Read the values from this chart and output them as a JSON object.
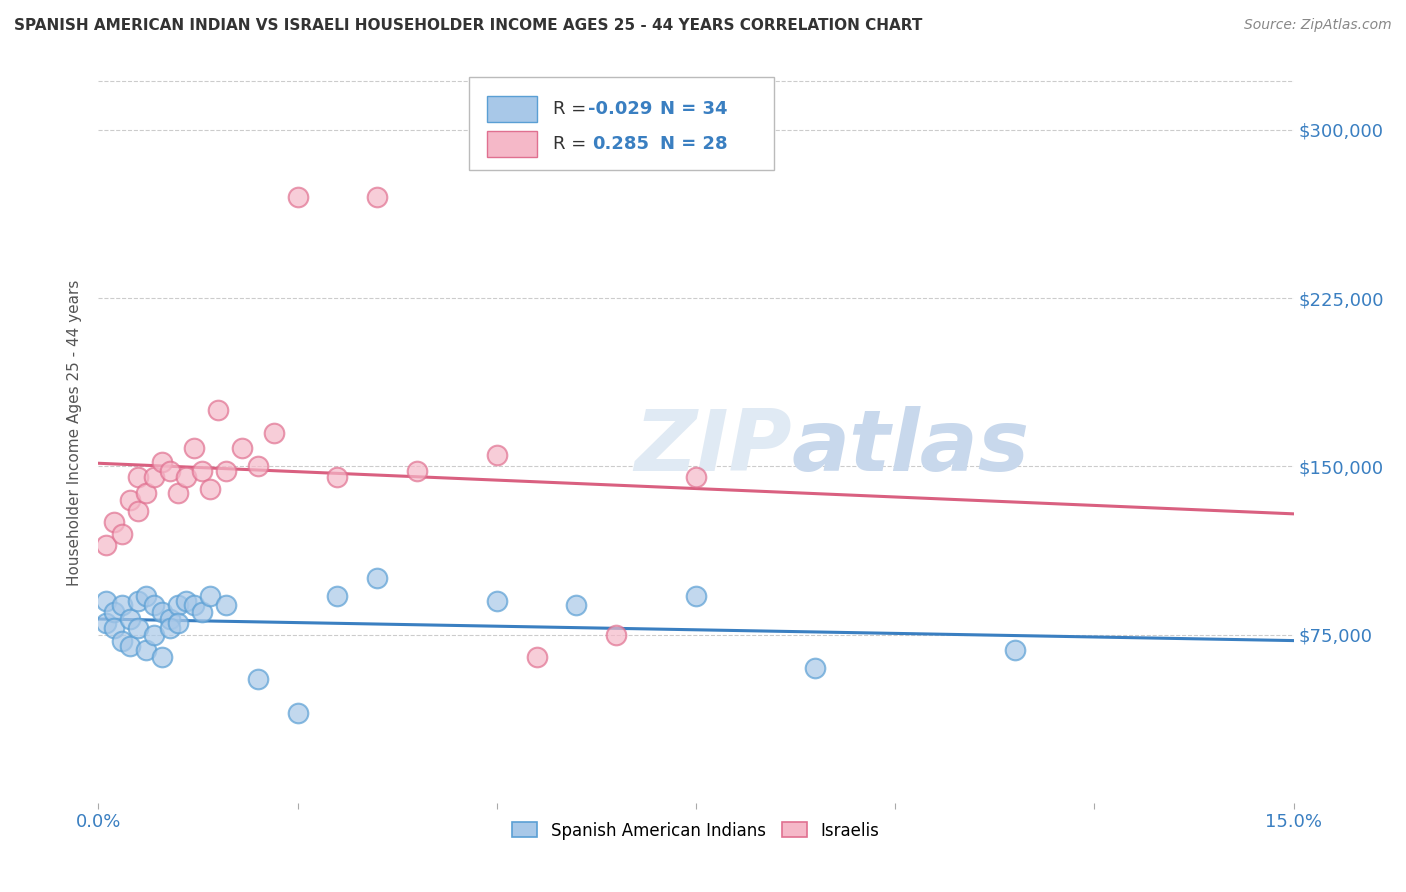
{
  "title": "SPANISH AMERICAN INDIAN VS ISRAELI HOUSEHOLDER INCOME AGES 25 - 44 YEARS CORRELATION CHART",
  "source": "Source: ZipAtlas.com",
  "ylabel": "Householder Income Ages 25 - 44 years",
  "xlim": [
    0.0,
    0.15
  ],
  "ylim": [
    0,
    330000
  ],
  "yticks": [
    75000,
    150000,
    225000,
    300000
  ],
  "ytick_labels": [
    "$75,000",
    "$150,000",
    "$225,000",
    "$300,000"
  ],
  "background_color": "#ffffff",
  "watermark_text": "ZIPatlas",
  "legend_R1_val": "-0.029",
  "legend_N1": "34",
  "legend_R2_val": "0.285",
  "legend_N2": "28",
  "blue_fill": "#A8C8E8",
  "blue_edge": "#5A9FD4",
  "pink_fill": "#F5B8C8",
  "pink_edge": "#E07090",
  "blue_line_color": "#3A7FC1",
  "pink_line_color": "#D96080",
  "grid_color": "#CCCCCC",
  "blue_scatter_x": [
    0.001,
    0.001,
    0.002,
    0.002,
    0.003,
    0.003,
    0.004,
    0.004,
    0.005,
    0.005,
    0.006,
    0.006,
    0.007,
    0.007,
    0.008,
    0.008,
    0.009,
    0.009,
    0.01,
    0.01,
    0.011,
    0.012,
    0.013,
    0.014,
    0.016,
    0.02,
    0.025,
    0.03,
    0.035,
    0.05,
    0.06,
    0.075,
    0.09,
    0.115
  ],
  "blue_scatter_y": [
    90000,
    80000,
    85000,
    78000,
    88000,
    72000,
    82000,
    70000,
    90000,
    78000,
    92000,
    68000,
    88000,
    75000,
    85000,
    65000,
    82000,
    78000,
    88000,
    80000,
    90000,
    88000,
    85000,
    92000,
    88000,
    55000,
    40000,
    92000,
    100000,
    90000,
    88000,
    92000,
    60000,
    68000
  ],
  "pink_scatter_x": [
    0.001,
    0.002,
    0.003,
    0.004,
    0.005,
    0.005,
    0.006,
    0.007,
    0.008,
    0.009,
    0.01,
    0.011,
    0.012,
    0.013,
    0.014,
    0.015,
    0.016,
    0.018,
    0.02,
    0.022,
    0.025,
    0.03,
    0.035,
    0.04,
    0.05,
    0.055,
    0.065,
    0.075
  ],
  "pink_scatter_y": [
    115000,
    125000,
    120000,
    135000,
    145000,
    130000,
    138000,
    145000,
    152000,
    148000,
    138000,
    145000,
    158000,
    148000,
    140000,
    175000,
    148000,
    158000,
    150000,
    165000,
    270000,
    145000,
    270000,
    148000,
    155000,
    65000,
    75000,
    145000
  ]
}
